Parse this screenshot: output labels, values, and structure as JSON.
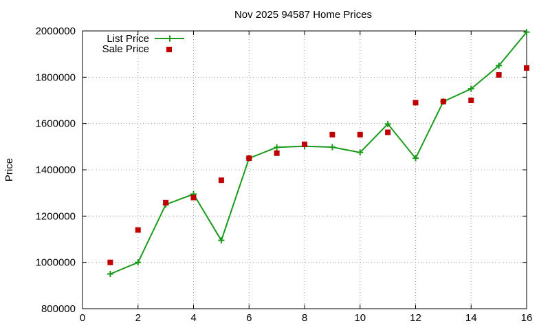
{
  "chart_data": {
    "type": "line",
    "title": "Nov 2025 94587 Home Prices",
    "xlabel": "",
    "ylabel": "Price",
    "xlim": [
      0,
      16
    ],
    "ylim": [
      800000,
      2000000
    ],
    "x_ticks": [
      "0",
      "2",
      "4",
      "6",
      "8",
      "10",
      "12",
      "14",
      "16"
    ],
    "y_ticks": [
      "800000",
      "1000000",
      "1200000",
      "1400000",
      "1600000",
      "1800000",
      "2000000"
    ],
    "grid": true,
    "legend_position": "top-left",
    "x": [
      1,
      2,
      3,
      4,
      5,
      6,
      7,
      8,
      9,
      10,
      11,
      12,
      13,
      14,
      15,
      16
    ],
    "series": [
      {
        "name": "List Price",
        "style": "lines+crosses",
        "color": "#1a9a1a",
        "values": [
          950000,
          1000000,
          1250000,
          1295000,
          1095000,
          1450000,
          1497000,
          1502000,
          1498000,
          1475000,
          1598000,
          1450000,
          1695000,
          1750000,
          1850000,
          1995000
        ]
      },
      {
        "name": "Sale Price",
        "style": "squares",
        "color": "#c00000",
        "values": [
          1000000,
          1140000,
          1258000,
          1280000,
          1355000,
          1450000,
          1472000,
          1510000,
          1552000,
          1552000,
          1562000,
          1690000,
          1695000,
          1700000,
          1810000,
          1840000
        ]
      }
    ]
  }
}
